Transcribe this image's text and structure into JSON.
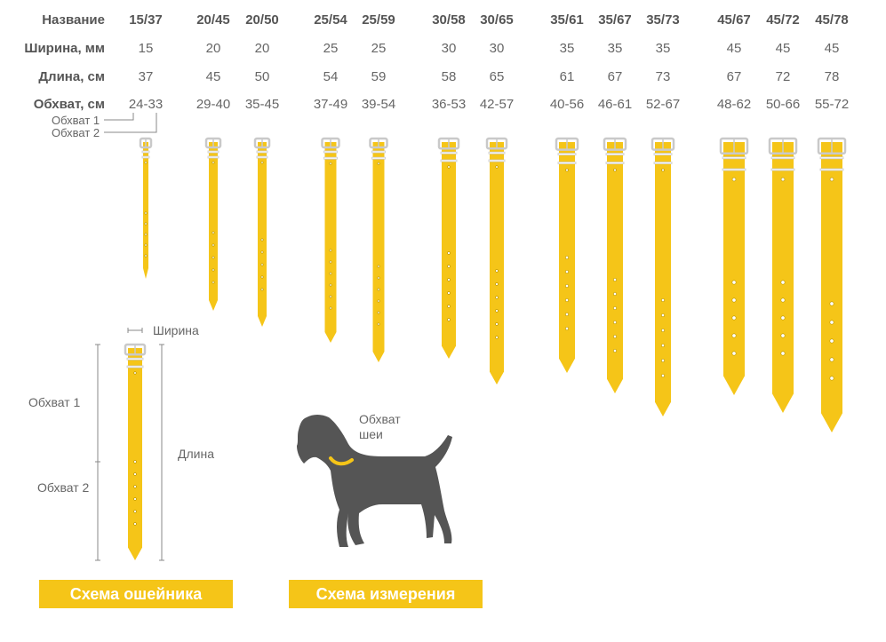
{
  "table": {
    "row_labels": {
      "name": "Название",
      "width": "Ширина, мм",
      "length": "Длина, см",
      "girth": "Обхват, см"
    },
    "columns": [
      {
        "name": "15/37",
        "width": "15",
        "length": "37",
        "girth": "24-33"
      },
      {
        "name": "20/45",
        "width": "20",
        "length": "45",
        "girth": "29-40"
      },
      {
        "name": "20/50",
        "width": "20",
        "length": "50",
        "girth": "35-45"
      },
      {
        "name": "25/54",
        "width": "25",
        "length": "54",
        "girth": "37-49"
      },
      {
        "name": "25/59",
        "width": "25",
        "length": "59",
        "girth": "39-54"
      },
      {
        "name": "30/58",
        "width": "30",
        "length": "58",
        "girth": "36-53"
      },
      {
        "name": "30/65",
        "width": "30",
        "length": "65",
        "girth": "42-57"
      },
      {
        "name": "35/61",
        "width": "35",
        "length": "61",
        "girth": "40-56"
      },
      {
        "name": "35/67",
        "width": "35",
        "length": "67",
        "girth": "46-61"
      },
      {
        "name": "35/73",
        "width": "35",
        "length": "73",
        "girth": "52-67"
      },
      {
        "name": "45/67",
        "width": "45",
        "length": "67",
        "girth": "48-62"
      },
      {
        "name": "45/72",
        "width": "45",
        "length": "72",
        "girth": "50-66"
      },
      {
        "name": "45/78",
        "width": "45",
        "length": "78",
        "girth": "55-72"
      }
    ]
  },
  "girth_notes": {
    "girth1": "Обхват 1",
    "girth2": "Обхват 2"
  },
  "collar_scheme": {
    "width_label": "Ширина",
    "girth1_label": "Обхват 1",
    "girth2_label": "Обхват 2",
    "length_label": "Длина",
    "title": "Схема ошейника"
  },
  "measure_scheme": {
    "neck_label_line1": "Обхват",
    "neck_label_line2": "шеи",
    "title": "Схема измерения"
  },
  "colors": {
    "collar_yellow": "#f5c518",
    "buckle": "#c9c9c9",
    "dog": "#555555",
    "text": "#555555"
  }
}
